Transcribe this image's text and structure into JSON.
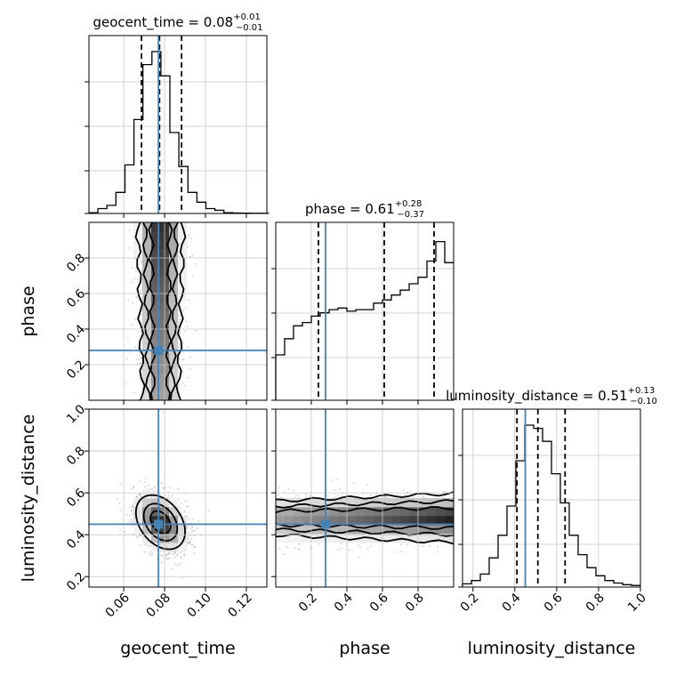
{
  "chart_data": {
    "type": "corner",
    "grid": true,
    "truth_color": "#4682b4",
    "quantile_levels": [
      0.16,
      0.5,
      0.84
    ],
    "parameters": [
      {
        "label": "geocent_time",
        "title": {
          "prefix": "geocent_time = ",
          "value": "0.08",
          "plus": "+0.01",
          "minus": "−0.01"
        },
        "range": [
          0.043,
          0.13
        ],
        "ticks": [
          "0.06",
          "0.08",
          "0.10",
          "0.12"
        ],
        "tick_values": [
          0.06,
          0.08,
          0.1,
          0.12
        ],
        "truth": 0.077,
        "quantiles": [
          0.0687,
          0.0775,
          0.0883
        ],
        "hist": {
          "edges": [
            0.043,
            0.0474,
            0.0518,
            0.0562,
            0.0606,
            0.065,
            0.0694,
            0.0738,
            0.0782,
            0.0826,
            0.087,
            0.0914,
            0.0958,
            0.1002,
            0.1046,
            0.109,
            0.1134,
            0.1178,
            0.1222,
            0.1266,
            0.131
          ],
          "values": [
            0.005,
            0.03,
            0.05,
            0.13,
            0.3,
            0.58,
            0.92,
            1.0,
            0.85,
            0.5,
            0.29,
            0.13,
            0.07,
            0.03,
            0.02,
            0.005,
            0.003,
            0.002,
            0.001,
            0.001
          ]
        }
      },
      {
        "label": "phase",
        "title": {
          "prefix": "phase = ",
          "value": "0.61",
          "plus": "+0.28",
          "minus": "−0.37"
        },
        "range": [
          0.0,
          1.0
        ],
        "ticks": [
          "0.2",
          "0.4",
          "0.6",
          "0.8"
        ],
        "tick_values": [
          0.2,
          0.4,
          0.6,
          0.8
        ],
        "truth": 0.28,
        "quantiles": [
          0.24,
          0.61,
          0.89
        ],
        "hist": {
          "edges": [
            0.0,
            0.05,
            0.1,
            0.15,
            0.2,
            0.25,
            0.3,
            0.35,
            0.4,
            0.45,
            0.5,
            0.55,
            0.6,
            0.65,
            0.7,
            0.75,
            0.8,
            0.85,
            0.9,
            0.95,
            1.0
          ],
          "values": [
            0.28,
            0.38,
            0.46,
            0.48,
            0.52,
            0.54,
            0.56,
            0.57,
            0.55,
            0.56,
            0.56,
            0.6,
            0.62,
            0.65,
            0.68,
            0.72,
            0.76,
            0.86,
            0.98,
            0.85
          ]
        }
      },
      {
        "label": "luminosity_distance",
        "title": {
          "prefix": "luminosity_distance = ",
          "value": "0.51",
          "plus": "+0.13",
          "minus": "−0.10"
        },
        "range": [
          0.15,
          1.0
        ],
        "ticks": [
          "0.2",
          "0.4",
          "0.6",
          "0.8",
          "1.0"
        ],
        "tick_values": [
          0.2,
          0.4,
          0.6,
          0.8,
          1.0
        ],
        "truth": 0.45,
        "quantiles": [
          0.41,
          0.51,
          0.64
        ],
        "hist": {
          "edges": [
            0.15,
            0.1925,
            0.235,
            0.2775,
            0.32,
            0.3625,
            0.405,
            0.4475,
            0.49,
            0.5325,
            0.575,
            0.6175,
            0.66,
            0.7025,
            0.745,
            0.7875,
            0.83,
            0.8725,
            0.915,
            0.9575,
            1.0
          ],
          "values": [
            0.02,
            0.04,
            0.08,
            0.18,
            0.32,
            0.5,
            0.78,
            1.0,
            0.98,
            0.9,
            0.7,
            0.52,
            0.32,
            0.2,
            0.12,
            0.07,
            0.04,
            0.025,
            0.015,
            0.01
          ]
        }
      }
    ],
    "pairs": [
      {
        "x": 0,
        "y": 1,
        "center": [
          0.078,
          0.6
        ],
        "spread": [
          0.0055,
          0.35
        ],
        "density_peak": [
          0.078,
          0.88
        ]
      },
      {
        "x": 0,
        "y": 2,
        "center": [
          0.078,
          0.46
        ],
        "spread": [
          0.0065,
          0.07
        ],
        "correlation": -0.35
      },
      {
        "x": 1,
        "y": 2,
        "center": [
          0.62,
          0.48
        ],
        "spread": [
          0.26,
          0.055
        ],
        "density_peak": [
          0.93,
          0.47
        ]
      }
    ]
  }
}
